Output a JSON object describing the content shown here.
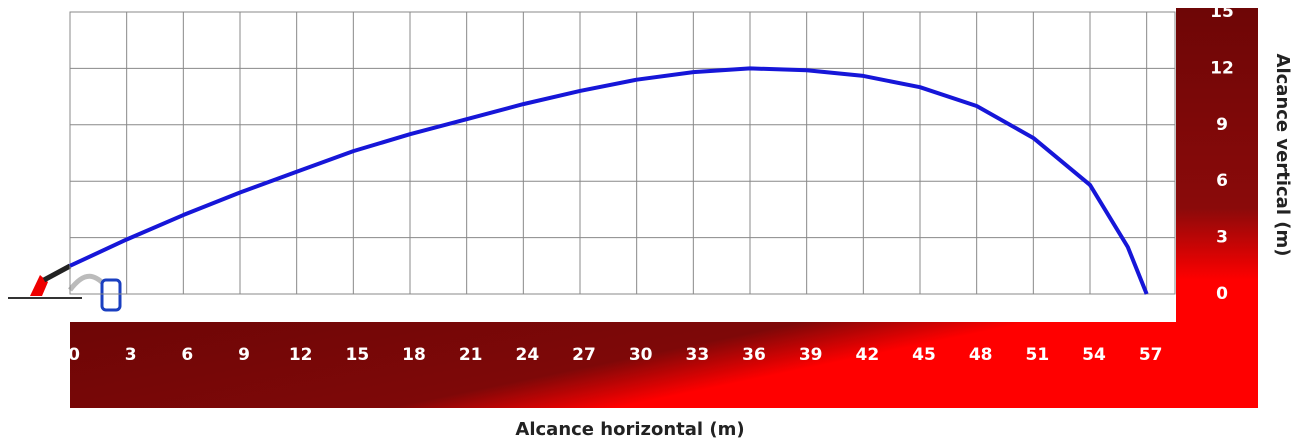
{
  "chart_data": {
    "type": "line",
    "x_label": "Alcance horizontal (m)",
    "y_label": "Alcance vertical (m)",
    "x": [
      0,
      3,
      6,
      9,
      12,
      15,
      18,
      21,
      24,
      27,
      30,
      33,
      36,
      39,
      42,
      45,
      48,
      51,
      54,
      56,
      57
    ],
    "series": [
      {
        "color": "#1616d8",
        "values": [
          1.5,
          2.9,
          4.2,
          5.4,
          6.5,
          7.6,
          8.5,
          9.3,
          10.1,
          10.8,
          11.4,
          11.8,
          12,
          11.9,
          11.6,
          11,
          10,
          8.3,
          5.8,
          2.5,
          0
        ]
      }
    ],
    "xlim": [
      0,
      58.5
    ],
    "ylim": [
      0,
      15
    ],
    "xticks": [
      0,
      3,
      6,
      9,
      12,
      15,
      18,
      21,
      24,
      27,
      30,
      33,
      36,
      39,
      42,
      45,
      48,
      51,
      54,
      57
    ],
    "yticks": [
      0,
      3,
      6,
      9,
      12,
      15
    ],
    "grid": true
  }
}
